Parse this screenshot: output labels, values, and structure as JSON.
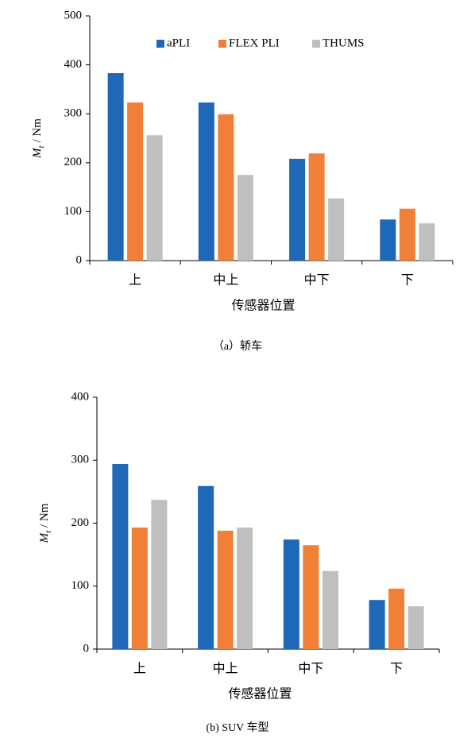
{
  "chart_data": [
    {
      "type": "bar",
      "categories": [
        "上",
        "中上",
        "中下",
        "下"
      ],
      "series": [
        {
          "name": "aPLI",
          "color": "#1f68b8",
          "values": [
            383,
            323,
            208,
            84
          ]
        },
        {
          "name": "FLEX PLI",
          "color": "#f07f37",
          "values": [
            323,
            299,
            219,
            106
          ]
        },
        {
          "name": "THUMS",
          "color": "#bfbfbf",
          "values": [
            256,
            175,
            127,
            76
          ]
        }
      ],
      "ylim": [
        0,
        500
      ],
      "yticks": [
        0,
        100,
        200,
        300,
        400,
        500
      ],
      "ylabel": [
        "M",
        "t",
        " / Nm"
      ],
      "xlabel": "传感器位置",
      "caption": "（a）轿车",
      "legend": "top"
    },
    {
      "type": "bar",
      "categories": [
        "上",
        "中上",
        "中下",
        "下"
      ],
      "series": [
        {
          "color": "#1f68b8",
          "values": [
            294,
            259,
            174,
            78
          ]
        },
        {
          "color": "#f07f37",
          "values": [
            193,
            188,
            165,
            96
          ]
        },
        {
          "color": "#bfbfbf",
          "values": [
            237,
            193,
            124,
            68
          ]
        }
      ],
      "ylim": [
        0,
        400
      ],
      "yticks": [
        0,
        100,
        200,
        300,
        400
      ],
      "ylabel": [
        "M",
        "t",
        " / Nm"
      ],
      "xlabel": "传感器位置",
      "caption": "(b) SUV 车型"
    }
  ]
}
